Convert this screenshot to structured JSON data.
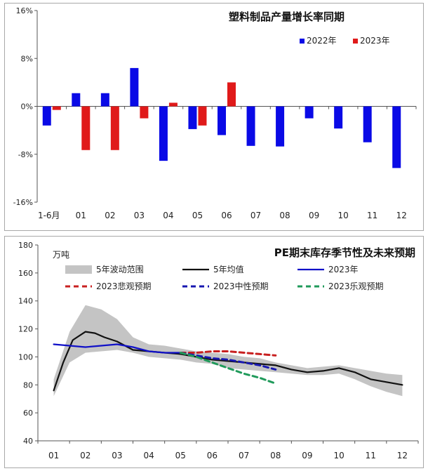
{
  "chart_data": [
    {
      "type": "bar",
      "title": "塑料制品产量增长率同期",
      "categories": [
        "1-6月",
        "01",
        "02",
        "03",
        "04",
        "05",
        "06",
        "07",
        "08",
        "09",
        "10",
        "11",
        "12"
      ],
      "ylim": [
        -16,
        16
      ],
      "yticks": [
        "16%",
        "8%",
        "0%",
        "-8%",
        "-16%"
      ],
      "ytick_values": [
        16,
        8,
        0,
        -8,
        -16
      ],
      "legend_position": "top-right",
      "series": [
        {
          "name": "2022年",
          "color": "#0a0ae6",
          "values": [
            -3.2,
            2.2,
            2.2,
            6.4,
            -9.1,
            -3.8,
            -4.8,
            -6.6,
            -6.7,
            -2.0,
            -3.7,
            -6.0,
            -10.3
          ]
        },
        {
          "name": "2023年",
          "color": "#e01a1a",
          "values": [
            -0.6,
            -7.3,
            -7.3,
            -2.0,
            0.6,
            -3.2,
            4.0,
            null,
            null,
            null,
            null,
            null,
            null
          ]
        }
      ]
    },
    {
      "type": "line",
      "title": "PE期末库存季节性及未来预期",
      "unit": "万吨",
      "categories": [
        "01",
        "02",
        "03",
        "04",
        "05",
        "06",
        "07",
        "08",
        "09",
        "10",
        "11",
        "12"
      ],
      "ylim": [
        40,
        180
      ],
      "yticks": [
        40,
        60,
        80,
        100,
        120,
        140,
        160,
        180
      ],
      "band": {
        "name": "5年波动范围",
        "color": "#c4c4c4",
        "x": [
          1,
          1.5,
          2,
          2.5,
          3,
          3.5,
          4,
          4.5,
          5,
          5.5,
          6,
          6.5,
          7,
          7.5,
          8,
          8.5,
          9,
          9.5,
          10,
          10.5,
          11,
          11.5,
          12
        ],
        "upper": [
          84,
          118,
          137,
          134,
          127,
          114,
          109,
          108,
          106,
          104,
          103,
          102,
          100,
          99,
          96,
          94,
          92,
          93,
          94,
          92,
          90,
          88,
          87
        ],
        "lower": [
          72,
          96,
          103,
          104,
          105,
          103,
          100,
          99,
          98,
          96,
          95,
          92,
          91,
          90,
          89,
          88,
          87,
          87,
          88,
          84,
          79,
          75,
          72
        ]
      },
      "series": [
        {
          "name": "5年均值",
          "color": "#111111",
          "style": "solid",
          "x": [
            1,
            1.3,
            1.6,
            2,
            2.3,
            2.6,
            3,
            3.5,
            4,
            4.5,
            5,
            5.5,
            6,
            6.5,
            7,
            7.5,
            8,
            8.5,
            9,
            9.5,
            10,
            10.5,
            11,
            11.5,
            12
          ],
          "values": [
            76,
            96,
            112,
            118,
            117,
            114,
            111,
            105,
            104,
            103,
            102,
            100,
            98,
            97,
            96,
            95,
            94,
            91,
            89,
            90,
            92,
            89,
            84,
            82,
            80
          ]
        },
        {
          "name": "2023年",
          "color": "#1010c8",
          "style": "solid",
          "x": [
            1,
            1.5,
            2,
            2.5,
            3,
            3.5,
            4,
            4.5,
            5
          ],
          "values": [
            109,
            108,
            107,
            108,
            109,
            107,
            104,
            103,
            103
          ]
        },
        {
          "name": "2023悲观预期",
          "color": "#c82020",
          "style": "dashed",
          "x": [
            5,
            5.5,
            6,
            6.5,
            7,
            7.5,
            8
          ],
          "values": [
            103,
            103,
            104,
            104,
            103,
            102,
            101
          ]
        },
        {
          "name": "2023中性预期",
          "color": "#1818b0",
          "style": "dashed",
          "x": [
            5,
            5.5,
            6,
            6.5,
            7,
            7.5,
            8
          ],
          "values": [
            103,
            101,
            99,
            98,
            96,
            94,
            91
          ]
        },
        {
          "name": "2023乐观预期",
          "color": "#1f9a5a",
          "style": "dashed",
          "x": [
            5,
            5.5,
            6,
            6.5,
            7,
            7.5,
            8
          ],
          "values": [
            103,
            100,
            96,
            92,
            88,
            85,
            81
          ]
        }
      ]
    }
  ]
}
